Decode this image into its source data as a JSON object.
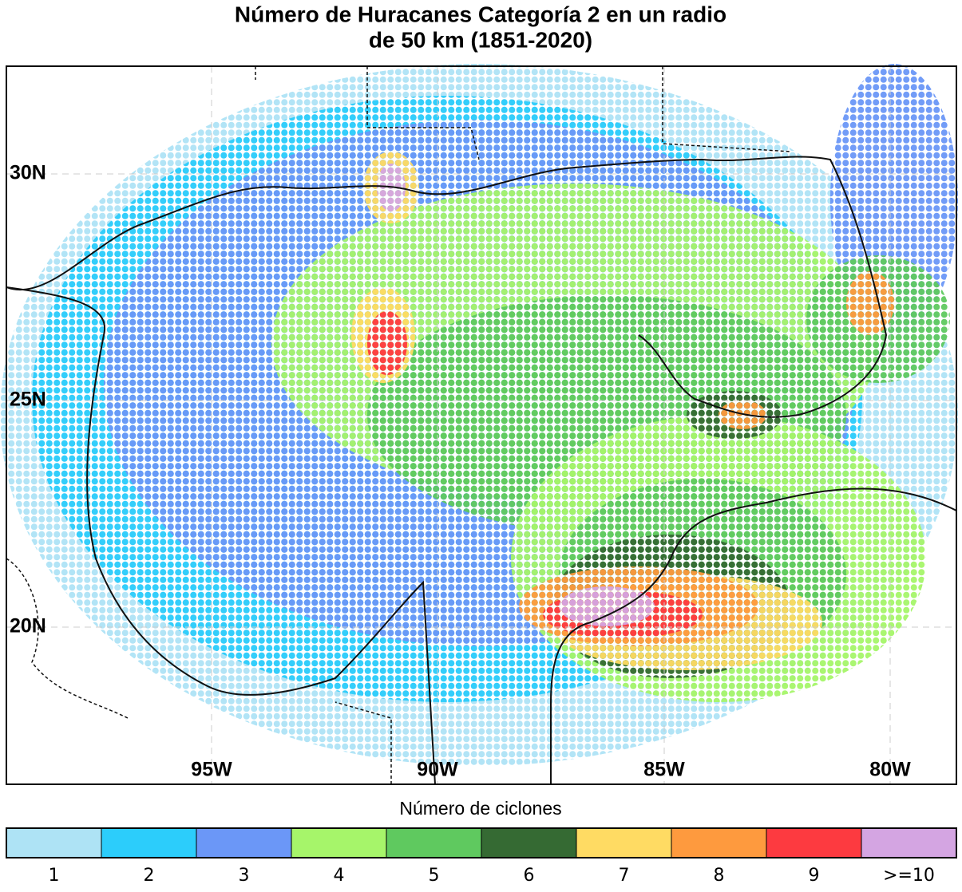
{
  "header": {
    "title_lines": [
      "Número de Huracanes Categoría 2 en un radio",
      "de 50 km (1851-2020)"
    ]
  },
  "map": {
    "lat_labels": [
      "30N",
      "25N",
      "20N"
    ],
    "lon_labels": [
      "95W",
      "90W",
      "85W",
      "80W"
    ]
  },
  "colorbar": {
    "title": "Número de ciclones",
    "entries": [
      {
        "label": "1",
        "color": "#aee3f5"
      },
      {
        "label": "2",
        "color": "#2ccdfb"
      },
      {
        "label": "3",
        "color": "#6b97f7"
      },
      {
        "label": "4",
        "color": "#a6f56a"
      },
      {
        "label": "5",
        "color": "#5fc95f"
      },
      {
        "label": "6",
        "color": "#356a33"
      },
      {
        "label": "7",
        "color": "#ffdb63"
      },
      {
        "label": "8",
        "color": "#fe9a3e"
      },
      {
        "label": "9",
        "color": "#fd3a40"
      },
      {
        "label": ">=10",
        "color": "#d4a5e2"
      }
    ]
  }
}
